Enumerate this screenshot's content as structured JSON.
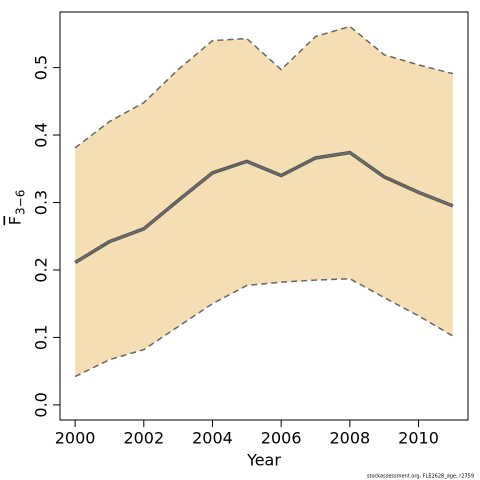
{
  "chart_data": {
    "type": "line",
    "xlabel": "Year",
    "ylabel": "F",
    "ylabel_sub": "3−6",
    "footer": "stockassessment.org, FLE2628_age, r2759",
    "x": [
      2000,
      2001,
      2002,
      2003,
      2004,
      2005,
      2006,
      2007,
      2008,
      2009,
      2010,
      2011
    ],
    "series": [
      {
        "color": "#000000",
        "values": [
          0.211,
          0.242,
          0.261,
          0.303,
          0.344,
          0.361,
          0.34,
          0.366,
          0.374,
          0.338,
          0.315,
          0.295
        ]
      }
    ],
    "band": {
      "color": "#f5deb3",
      "edge_color": "#666666",
      "upper": [
        0.381,
        0.42,
        0.448,
        0.497,
        0.54,
        0.543,
        0.497,
        0.546,
        0.561,
        0.519,
        0.504,
        0.491
      ],
      "lower": [
        0.042,
        0.067,
        0.082,
        0.116,
        0.15,
        0.177,
        0.182,
        0.185,
        0.187,
        0.159,
        0.132,
        0.102
      ]
    },
    "xlim": [
      1999.56,
      2011.44
    ],
    "ylim": [
      -0.0224,
      0.5824
    ],
    "xticks": [
      2000,
      2002,
      2004,
      2006,
      2008,
      2010
    ],
    "yticks": [
      {
        "value": 0,
        "label": "0.0"
      },
      0.1,
      0.2,
      0.3,
      0.4,
      0.5
    ]
  }
}
